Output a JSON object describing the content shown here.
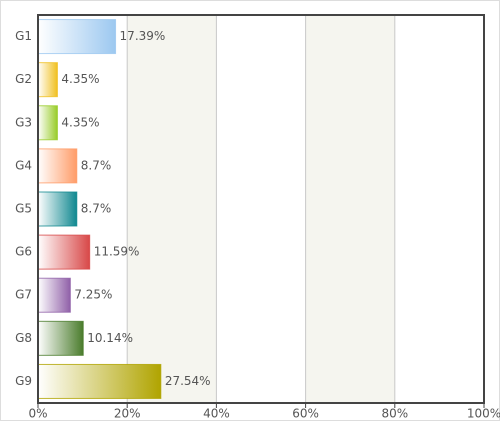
{
  "chart_data": {
    "type": "hbar",
    "categories": [
      "G1",
      "G2",
      "G3",
      "G4",
      "G5",
      "G6",
      "G7",
      "G8",
      "G9"
    ],
    "values": [
      17.39,
      4.35,
      4.35,
      8.7,
      8.7,
      11.59,
      7.25,
      10.14,
      27.54
    ],
    "value_labels": [
      "17.39%",
      "4.35%",
      "4.35%",
      "8.7%",
      "8.7%",
      "11.59%",
      "7.25%",
      "10.14%",
      "27.54%"
    ],
    "colors": [
      "#9cc8f0",
      "#f0c020",
      "#98cc28",
      "#ff9c68",
      "#108890",
      "#d84848",
      "#9060a8",
      "#4a7c2c",
      "#b0a400"
    ],
    "xlim": [
      0,
      100
    ],
    "xticks": [
      {
        "value": 0,
        "label": "0%"
      },
      {
        "value": 20,
        "label": "20%"
      },
      {
        "value": 40,
        "label": "40%"
      },
      {
        "value": 60,
        "label": "60%"
      },
      {
        "value": 80,
        "label": "80%"
      },
      {
        "value": 100,
        "label": "100%"
      }
    ],
    "grid": true
  }
}
